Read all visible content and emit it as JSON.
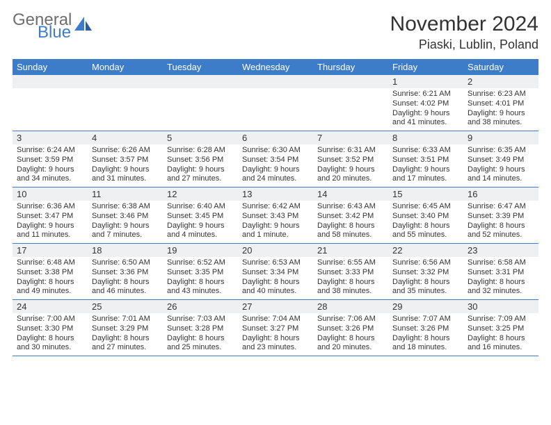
{
  "branding": {
    "word1": "General",
    "word2": "Blue",
    "color_gray": "#6e6e6e",
    "color_blue": "#3d7cc9"
  },
  "header": {
    "title": "November 2024",
    "location": "Piaski, Lublin, Poland"
  },
  "styling": {
    "header_bg": "#3d7cc9",
    "header_text": "#ffffff",
    "daynum_bg": "#eef0f2",
    "border_color": "#3d7cc9",
    "text_color": "#333333",
    "page_bg": "#ffffff",
    "body_fontsize": 11,
    "daynum_fontsize": 13,
    "dayhead_fontsize": 13,
    "title_fontsize": 30,
    "location_fontsize": 18
  },
  "dayheads": [
    "Sunday",
    "Monday",
    "Tuesday",
    "Wednesday",
    "Thursday",
    "Friday",
    "Saturday"
  ],
  "weeks": [
    [
      {
        "n": "",
        "sr": "",
        "ss": "",
        "dl": ""
      },
      {
        "n": "",
        "sr": "",
        "ss": "",
        "dl": ""
      },
      {
        "n": "",
        "sr": "",
        "ss": "",
        "dl": ""
      },
      {
        "n": "",
        "sr": "",
        "ss": "",
        "dl": ""
      },
      {
        "n": "",
        "sr": "",
        "ss": "",
        "dl": ""
      },
      {
        "n": "1",
        "sr": "Sunrise: 6:21 AM",
        "ss": "Sunset: 4:02 PM",
        "dl": "Daylight: 9 hours and 41 minutes."
      },
      {
        "n": "2",
        "sr": "Sunrise: 6:23 AM",
        "ss": "Sunset: 4:01 PM",
        "dl": "Daylight: 9 hours and 38 minutes."
      }
    ],
    [
      {
        "n": "3",
        "sr": "Sunrise: 6:24 AM",
        "ss": "Sunset: 3:59 PM",
        "dl": "Daylight: 9 hours and 34 minutes."
      },
      {
        "n": "4",
        "sr": "Sunrise: 6:26 AM",
        "ss": "Sunset: 3:57 PM",
        "dl": "Daylight: 9 hours and 31 minutes."
      },
      {
        "n": "5",
        "sr": "Sunrise: 6:28 AM",
        "ss": "Sunset: 3:56 PM",
        "dl": "Daylight: 9 hours and 27 minutes."
      },
      {
        "n": "6",
        "sr": "Sunrise: 6:30 AM",
        "ss": "Sunset: 3:54 PM",
        "dl": "Daylight: 9 hours and 24 minutes."
      },
      {
        "n": "7",
        "sr": "Sunrise: 6:31 AM",
        "ss": "Sunset: 3:52 PM",
        "dl": "Daylight: 9 hours and 20 minutes."
      },
      {
        "n": "8",
        "sr": "Sunrise: 6:33 AM",
        "ss": "Sunset: 3:51 PM",
        "dl": "Daylight: 9 hours and 17 minutes."
      },
      {
        "n": "9",
        "sr": "Sunrise: 6:35 AM",
        "ss": "Sunset: 3:49 PM",
        "dl": "Daylight: 9 hours and 14 minutes."
      }
    ],
    [
      {
        "n": "10",
        "sr": "Sunrise: 6:36 AM",
        "ss": "Sunset: 3:47 PM",
        "dl": "Daylight: 9 hours and 11 minutes."
      },
      {
        "n": "11",
        "sr": "Sunrise: 6:38 AM",
        "ss": "Sunset: 3:46 PM",
        "dl": "Daylight: 9 hours and 7 minutes."
      },
      {
        "n": "12",
        "sr": "Sunrise: 6:40 AM",
        "ss": "Sunset: 3:45 PM",
        "dl": "Daylight: 9 hours and 4 minutes."
      },
      {
        "n": "13",
        "sr": "Sunrise: 6:42 AM",
        "ss": "Sunset: 3:43 PM",
        "dl": "Daylight: 9 hours and 1 minute."
      },
      {
        "n": "14",
        "sr": "Sunrise: 6:43 AM",
        "ss": "Sunset: 3:42 PM",
        "dl": "Daylight: 8 hours and 58 minutes."
      },
      {
        "n": "15",
        "sr": "Sunrise: 6:45 AM",
        "ss": "Sunset: 3:40 PM",
        "dl": "Daylight: 8 hours and 55 minutes."
      },
      {
        "n": "16",
        "sr": "Sunrise: 6:47 AM",
        "ss": "Sunset: 3:39 PM",
        "dl": "Daylight: 8 hours and 52 minutes."
      }
    ],
    [
      {
        "n": "17",
        "sr": "Sunrise: 6:48 AM",
        "ss": "Sunset: 3:38 PM",
        "dl": "Daylight: 8 hours and 49 minutes."
      },
      {
        "n": "18",
        "sr": "Sunrise: 6:50 AM",
        "ss": "Sunset: 3:36 PM",
        "dl": "Daylight: 8 hours and 46 minutes."
      },
      {
        "n": "19",
        "sr": "Sunrise: 6:52 AM",
        "ss": "Sunset: 3:35 PM",
        "dl": "Daylight: 8 hours and 43 minutes."
      },
      {
        "n": "20",
        "sr": "Sunrise: 6:53 AM",
        "ss": "Sunset: 3:34 PM",
        "dl": "Daylight: 8 hours and 40 minutes."
      },
      {
        "n": "21",
        "sr": "Sunrise: 6:55 AM",
        "ss": "Sunset: 3:33 PM",
        "dl": "Daylight: 8 hours and 38 minutes."
      },
      {
        "n": "22",
        "sr": "Sunrise: 6:56 AM",
        "ss": "Sunset: 3:32 PM",
        "dl": "Daylight: 8 hours and 35 minutes."
      },
      {
        "n": "23",
        "sr": "Sunrise: 6:58 AM",
        "ss": "Sunset: 3:31 PM",
        "dl": "Daylight: 8 hours and 32 minutes."
      }
    ],
    [
      {
        "n": "24",
        "sr": "Sunrise: 7:00 AM",
        "ss": "Sunset: 3:30 PM",
        "dl": "Daylight: 8 hours and 30 minutes."
      },
      {
        "n": "25",
        "sr": "Sunrise: 7:01 AM",
        "ss": "Sunset: 3:29 PM",
        "dl": "Daylight: 8 hours and 27 minutes."
      },
      {
        "n": "26",
        "sr": "Sunrise: 7:03 AM",
        "ss": "Sunset: 3:28 PM",
        "dl": "Daylight: 8 hours and 25 minutes."
      },
      {
        "n": "27",
        "sr": "Sunrise: 7:04 AM",
        "ss": "Sunset: 3:27 PM",
        "dl": "Daylight: 8 hours and 23 minutes."
      },
      {
        "n": "28",
        "sr": "Sunrise: 7:06 AM",
        "ss": "Sunset: 3:26 PM",
        "dl": "Daylight: 8 hours and 20 minutes."
      },
      {
        "n": "29",
        "sr": "Sunrise: 7:07 AM",
        "ss": "Sunset: 3:26 PM",
        "dl": "Daylight: 8 hours and 18 minutes."
      },
      {
        "n": "30",
        "sr": "Sunrise: 7:09 AM",
        "ss": "Sunset: 3:25 PM",
        "dl": "Daylight: 8 hours and 16 minutes."
      }
    ]
  ]
}
